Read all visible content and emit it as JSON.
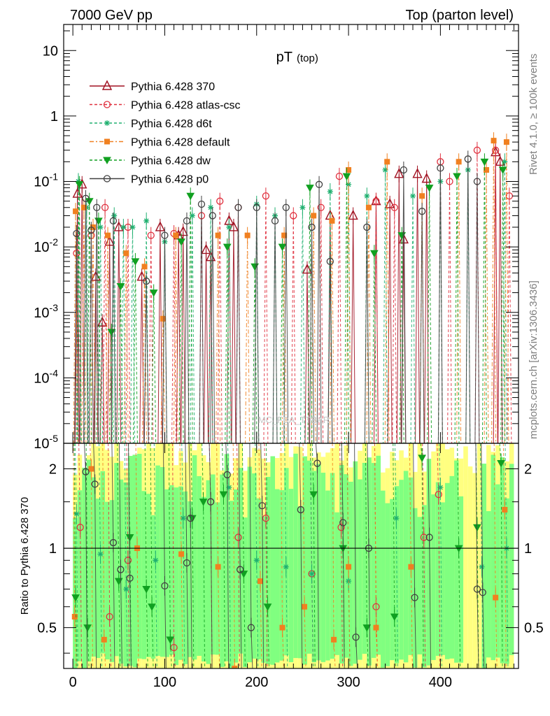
{
  "header": {
    "left": "7000 GeV pp",
    "right": "Top (parton level)"
  },
  "side_labels": {
    "rivet": "Rivet 4.1.0, ≥ 100k events",
    "mcplots": "mcplots.cern.ch [arXiv:1306.3436]"
  },
  "watermark": "MC_FBA_TTBAR",
  "chart_data": [
    {
      "type": "scatter",
      "title": "pT",
      "title_sub": "(top)",
      "xlabel": "",
      "ylabel": "",
      "yscale": "log",
      "xlim": [
        -10,
        485
      ],
      "ylim": [
        1e-05,
        25
      ],
      "y_tick_labels": [
        "10^{-5}",
        "10^{-4}",
        "10^{-3}",
        "10^{-2}",
        "10^{-1}",
        "1",
        "10"
      ],
      "legend_position": "top-left",
      "series": [
        {
          "name": "Pythia 6.428 370",
          "color": "#a01020",
          "marker": "triangle-open",
          "dash": "",
          "x": [
            5,
            10,
            25,
            32,
            40,
            50,
            75,
            95,
            115,
            120,
            145,
            150,
            170,
            175,
            255,
            280,
            305,
            330,
            345,
            355,
            360,
            375,
            385,
            460,
            465
          ],
          "y": [
            0.065,
            0.09,
            0.0035,
            0.0007,
            0.012,
            0.02,
            0.0035,
            0.02,
            0.015,
            0.017,
            0.009,
            0.007,
            0.025,
            0.02,
            0.0045,
            0.03,
            0.03,
            0.05,
            0.045,
            0.13,
            0.013,
            0.13,
            0.11,
            0.28,
            0.2
          ]
        },
        {
          "name": "Pythia 6.428 atlas-csc",
          "color": "#e0303e",
          "marker": "circle-open",
          "dash": "4,3",
          "x": [
            4,
            20,
            35,
            60,
            85,
            110,
            140,
            160,
            180,
            210,
            240,
            270,
            290,
            330,
            350,
            400,
            410,
            440,
            460,
            475
          ],
          "y": [
            0.008,
            0.015,
            0.04,
            0.02,
            0.015,
            0.016,
            0.03,
            0.05,
            0.04,
            0.06,
            0.03,
            0.04,
            0.12,
            0.05,
            0.04,
            0.2,
            0.1,
            0.3,
            0.3,
            0.06
          ]
        },
        {
          "name": "Pythia 6.428 d6t",
          "color": "#20b070",
          "marker": "star",
          "dash": "4,3",
          "x": [
            6,
            15,
            30,
            45,
            55,
            65,
            80,
            100,
            130,
            150,
            170,
            200,
            220,
            250,
            280,
            300,
            320,
            340,
            370,
            400,
            430,
            470
          ],
          "y": [
            0.1,
            0.04,
            0.02,
            0.03,
            0.02,
            0.02,
            0.025,
            0.012,
            0.03,
            0.04,
            0.02,
            0.045,
            0.03,
            0.04,
            0.07,
            0.09,
            0.06,
            0.15,
            0.06,
            0.1,
            0.15,
            0.2
          ]
        },
        {
          "name": "Pythia 6.428 default",
          "color": "#f08020",
          "marker": "square",
          "dash": "6,3,2,3",
          "x": [
            3,
            12,
            22,
            38,
            58,
            78,
            98,
            112,
            158,
            190,
            230,
            262,
            282,
            300,
            322,
            342,
            380,
            420,
            450,
            458,
            472
          ],
          "y": [
            0.035,
            0.04,
            0.02,
            0.015,
            0.008,
            0.005,
            0.0008,
            0.015,
            0.015,
            0.015,
            0.015,
            0.03,
            0.025,
            0.15,
            0.04,
            0.2,
            0.06,
            0.2,
            0.15,
            0.42,
            0.4
          ]
        },
        {
          "name": "Pythia 6.428 dw",
          "color": "#10a020",
          "marker": "triangle-down",
          "dash": "4,3",
          "x": [
            7,
            18,
            28,
            42,
            52,
            68,
            88,
            118,
            128,
            168,
            198,
            228,
            258,
            298,
            328,
            358,
            388,
            418,
            448,
            468
          ],
          "y": [
            0.09,
            0.05,
            0.025,
            0.0005,
            0.0025,
            0.006,
            0.002,
            0.012,
            0.06,
            0.01,
            0.005,
            0.01,
            0.08,
            0.12,
            0.008,
            0.015,
            0.08,
            0.12,
            0.2,
            0.15
          ]
        },
        {
          "name": "Pythia 6.428 p0",
          "color": "#404040",
          "marker": "circle-open",
          "dash": "",
          "x": [
            4,
            14,
            20,
            26,
            44,
            80,
            100,
            124,
            140,
            152,
            180,
            200,
            220,
            232,
            260,
            268,
            280,
            320,
            360,
            380,
            400,
            430,
            440
          ],
          "y": [
            0.016,
            0.055,
            0.018,
            0.04,
            0.025,
            0.003,
            0.015,
            0.025,
            0.045,
            0.03,
            0.04,
            0.04,
            0.025,
            0.04,
            0.02,
            0.09,
            0.006,
            0.02,
            0.15,
            0.035,
            0.16,
            0.22,
            0.1
          ]
        }
      ]
    },
    {
      "type": "scatter",
      "title": "",
      "xlabel": "",
      "ylabel": "Ratio to Pythia 6.428 370",
      "yscale": "log",
      "xlim": [
        -10,
        485
      ],
      "ylim": [
        0.35,
        2.5
      ],
      "x_ticks": [
        0,
        100,
        200,
        300,
        400
      ],
      "y_ticks": [
        0.5,
        1,
        2
      ],
      "reference_line": 1,
      "band_color_inner": "#80ff80",
      "band_color_outer": "#ffff80",
      "series": [
        {
          "name": "Pythia 6.428 atlas-csc",
          "color": "#e0303e",
          "x": [
            8,
            40,
            60,
            110,
            150,
            180,
            210,
            260,
            292,
            330,
            382,
            398
          ],
          "y": [
            1.2,
            0.55,
            0.9,
            0.42,
            1.5,
            1.1,
            1.3,
            0.8,
            1.2,
            0.6,
            1.1,
            1.6
          ]
        },
        {
          "name": "Pythia 6.428 d6t",
          "color": "#20b070",
          "x": [
            4,
            30,
            58,
            90,
            120,
            170,
            200,
            232,
            260,
            300,
            352,
            400,
            445,
            472
          ],
          "y": [
            1.35,
            0.95,
            0.7,
            0.9,
            1.3,
            1.7,
            0.9,
            0.85,
            0.8,
            0.75,
            1.3,
            1.7,
            0.85,
            1.0
          ]
        },
        {
          "name": "Pythia 6.428 default",
          "color": "#f08020",
          "x": [
            2,
            20,
            34,
            70,
            118,
            158,
            176,
            204,
            228,
            252,
            284,
            300,
            330,
            368,
            460,
            470
          ],
          "y": [
            0.55,
            2.0,
            0.45,
            1.0,
            0.95,
            0.85,
            0.35,
            0.75,
            0.5,
            0.6,
            0.45,
            0.85,
            0.5,
            0.85,
            0.65,
            1.4
          ]
        },
        {
          "name": "Pythia 6.428 dw",
          "color": "#10a020",
          "x": [
            3,
            16,
            50,
            62,
            80,
            86,
            106,
            130,
            142,
            164,
            186,
            212,
            262,
            294,
            320,
            350,
            380,
            420,
            440,
            466
          ],
          "y": [
            0.65,
            0.5,
            0.75,
            1.1,
            0.7,
            0.6,
            0.45,
            1.3,
            1.5,
            1.6,
            0.8,
            0.6,
            1.6,
            1.0,
            0.5,
            0.55,
            2.2,
            1.0,
            1.2,
            2.1
          ]
        },
        {
          "name": "Pythia 6.428 p0",
          "color": "#404040",
          "x": [
            14,
            24,
            44,
            52,
            62,
            100,
            124,
            128,
            150,
            168,
            182,
            194,
            206,
            248,
            266,
            294,
            308,
            322,
            372,
            388,
            440,
            446
          ],
          "y": [
            1.95,
            1.75,
            1.05,
            0.83,
            0.77,
            0.72,
            0.88,
            1.3,
            1.5,
            1.9,
            0.83,
            0.5,
            1.45,
            1.4,
            2.1,
            1.25,
            0.46,
            1.0,
            0.65,
            1.1,
            0.7,
            0.68
          ]
        }
      ]
    }
  ]
}
